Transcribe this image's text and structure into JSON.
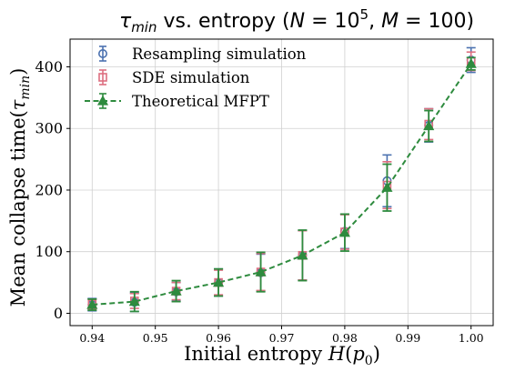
{
  "chart_data": {
    "type": "line",
    "title": "τmin vs. entropy (N = 10⁵, M = 100)",
    "title_parts": {
      "tau": "τ",
      "tau_sub": "min",
      "middle": " vs. entropy (",
      "N": "N",
      "eq1": " = 10",
      "exp": "5",
      "comma": ",  ",
      "M": "M",
      "eq2": " = 100)"
    },
    "xlabel": "Initial entropy H(p0)",
    "xlabel_parts": {
      "text": "Initial entropy ",
      "H": "H",
      "open": "(",
      "p": "p",
      "sub": "0",
      "close": ")"
    },
    "ylabel": "Mean collapse time(τmin)",
    "ylabel_parts": {
      "text": "Mean collapse time(",
      "tau": "τ",
      "sub": "min",
      "close": ")"
    },
    "xlim": [
      0.9365,
      1.0035
    ],
    "ylim": [
      -20,
      445
    ],
    "xticks": [
      0.94,
      0.95,
      0.96,
      0.97,
      0.98,
      0.99,
      1.0
    ],
    "xtick_labels": [
      "0.94",
      "0.95",
      "0.96",
      "0.97",
      "0.98",
      "0.99",
      "1.00"
    ],
    "yticks": [
      0,
      100,
      200,
      300,
      400
    ],
    "ytick_labels": [
      "0",
      "100",
      "200",
      "300",
      "400"
    ],
    "grid": true,
    "legend_position": "top-left",
    "x": [
      0.94,
      0.9467,
      0.9533,
      0.96,
      0.9667,
      0.9733,
      0.98,
      0.9867,
      0.9933,
      1.0
    ],
    "series": [
      {
        "name": "Resampling simulation",
        "color": "#4c72b0",
        "marker": "circle",
        "values": [
          14,
          18,
          35,
          50,
          66,
          94,
          133,
          215,
          305,
          411
        ],
        "errors": [
          10,
          15,
          15,
          22,
          30,
          40,
          28,
          42,
          27,
          20
        ]
      },
      {
        "name": "SDE simulation",
        "color": "#dd6f80",
        "marker": "square",
        "values": [
          15,
          20,
          36,
          50,
          67,
          94,
          132,
          208,
          307,
          409
        ],
        "errors": [
          8,
          12,
          14,
          20,
          30,
          40,
          28,
          38,
          25,
          15
        ]
      },
      {
        "name": "Theoretical MFPT",
        "color": "#2e8b3e",
        "marker": "triangle",
        "line": "dashed",
        "values": [
          14,
          19,
          36,
          50,
          67,
          94,
          131,
          204,
          304,
          405
        ],
        "errors": [
          9,
          16,
          17,
          22,
          32,
          41,
          30,
          38,
          25,
          10
        ]
      }
    ]
  }
}
